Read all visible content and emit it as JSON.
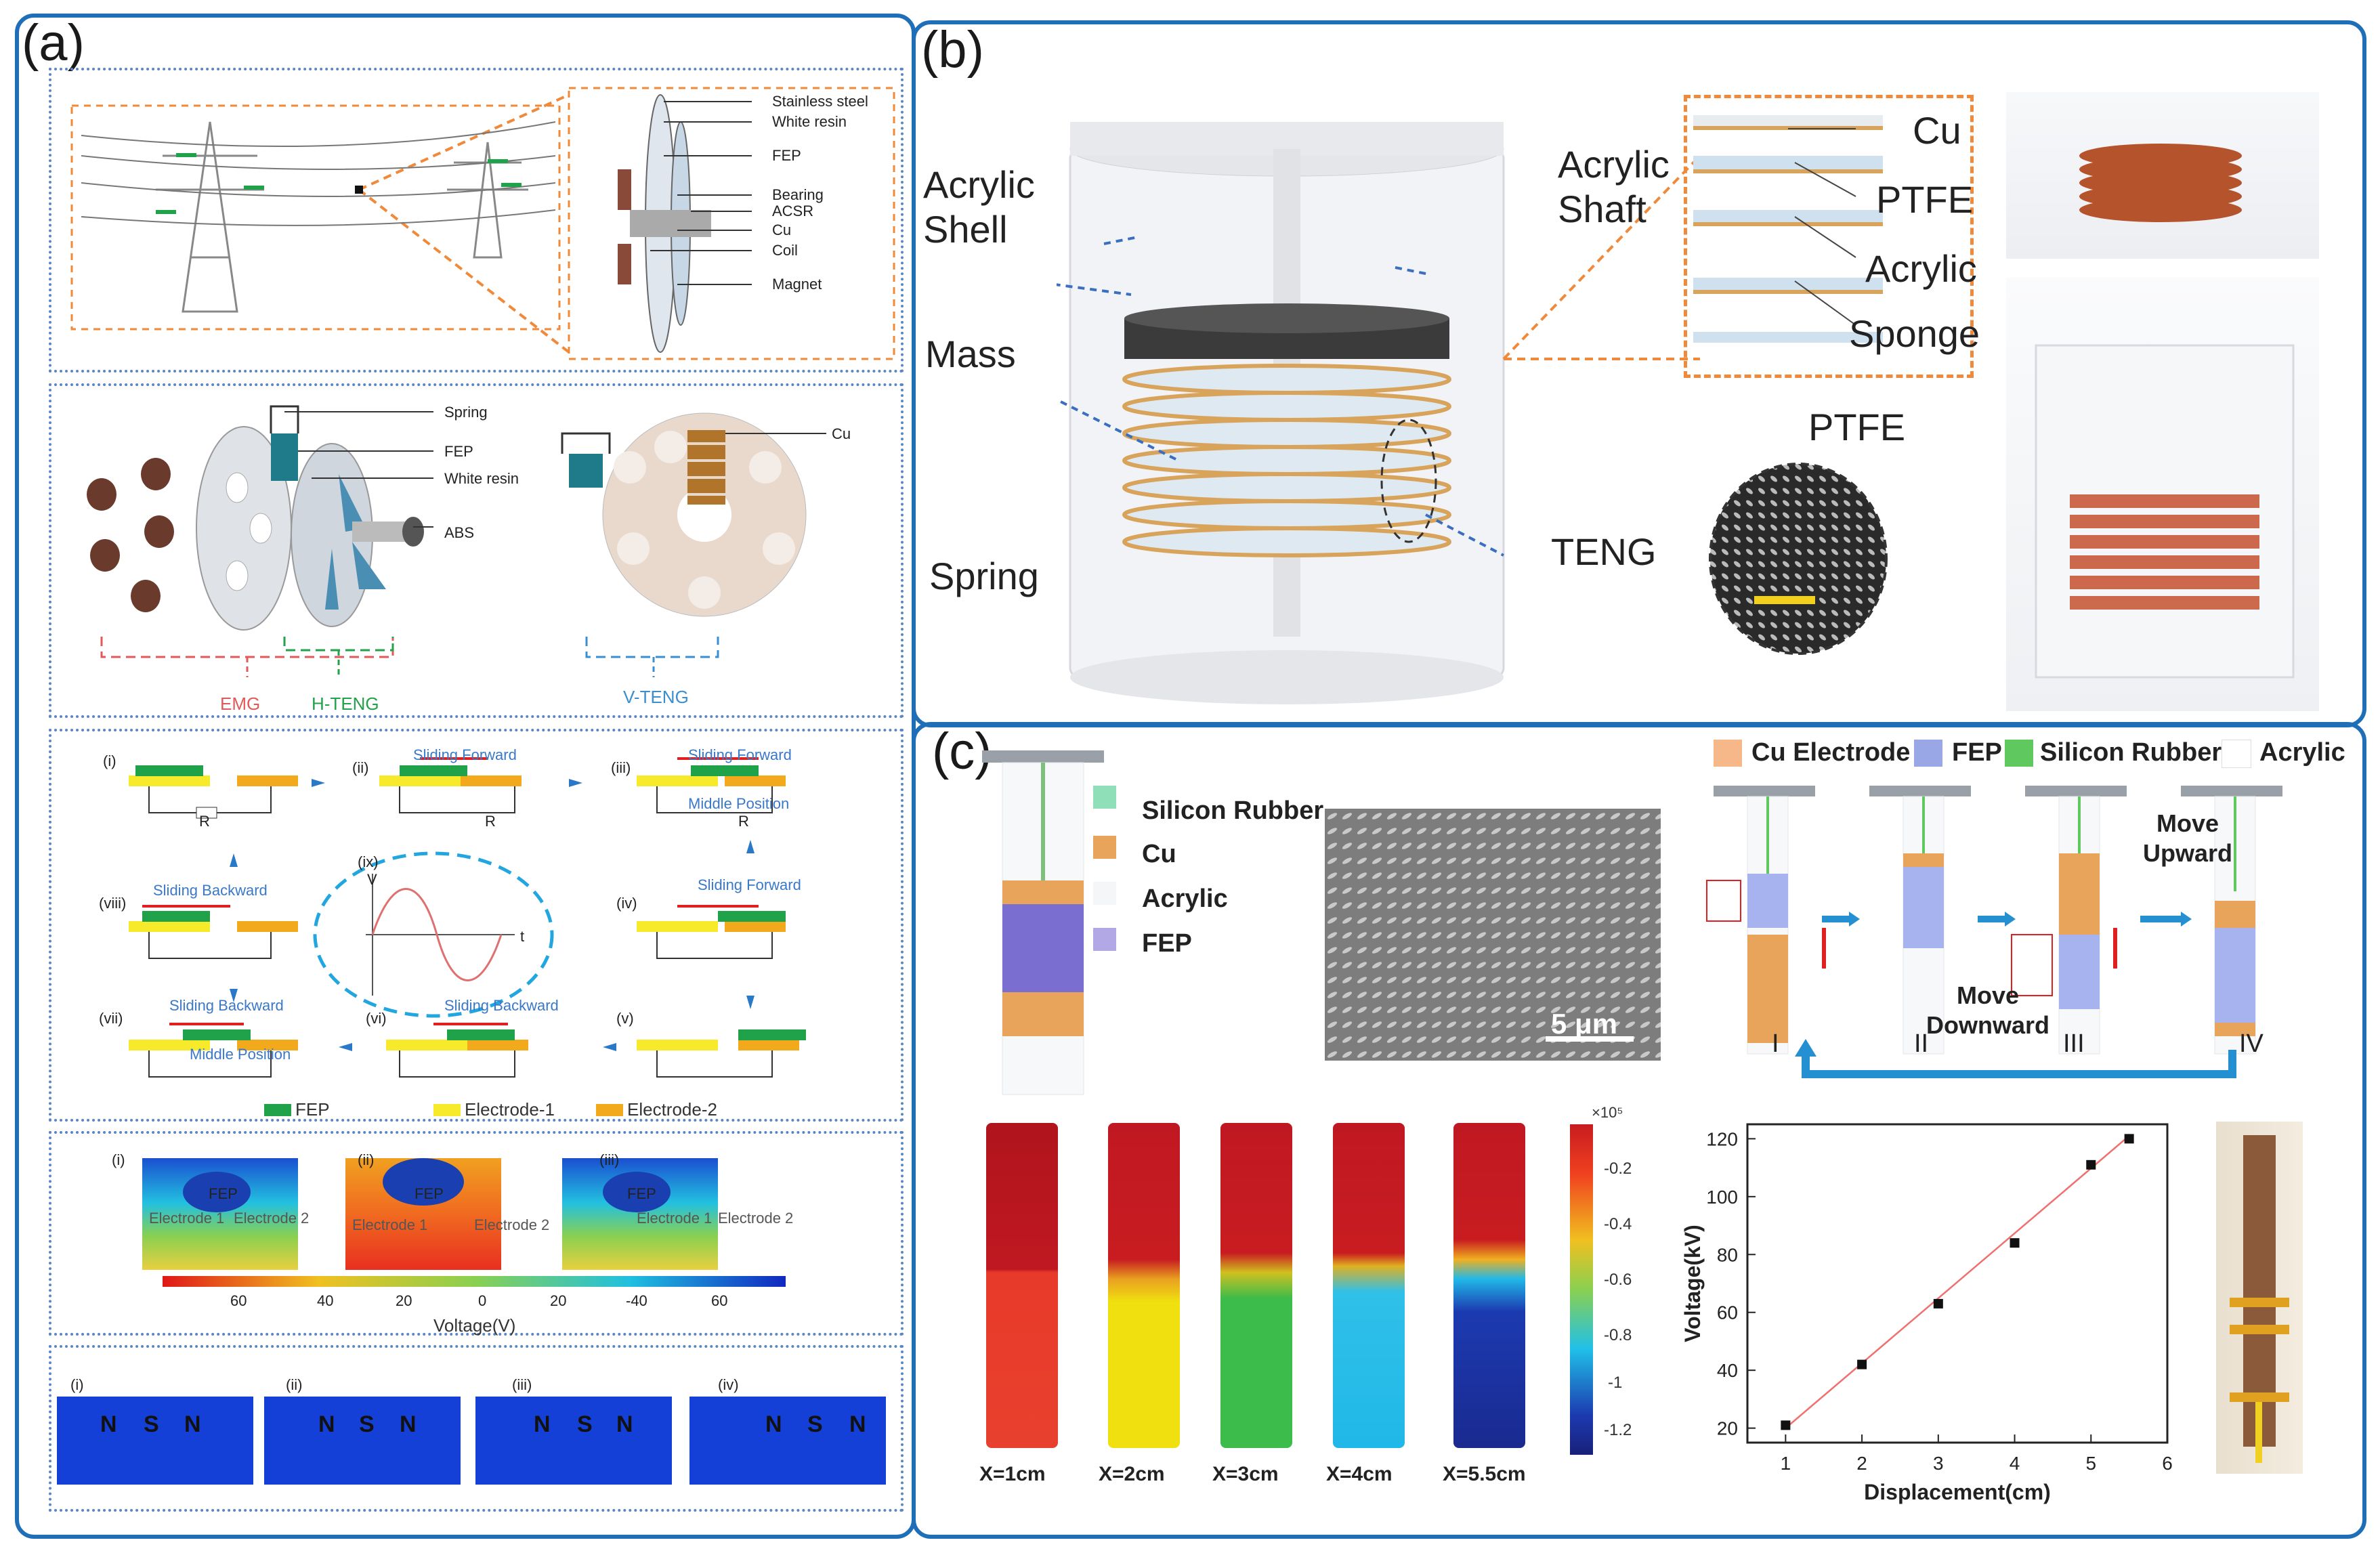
{
  "panels": {
    "a": "(a)",
    "b": "(b)",
    "c": "(c)"
  },
  "a1": {
    "labels": [
      "Stainless steel",
      "White resin",
      "FEP",
      "Bearing",
      "ACSR",
      "Cu",
      "Coil",
      "Magnet"
    ]
  },
  "a2": {
    "labels": {
      "spring": "Spring",
      "fep": "FEP",
      "white_resin": "White resin",
      "abs": "ABS",
      "cu": "Cu"
    },
    "groups": {
      "emg": "EMG",
      "hteng": "H-TENG",
      "vteng": "V-TENG"
    }
  },
  "a3": {
    "steps": [
      "(i)",
      "(ii)",
      "(iii)",
      "(iv)",
      "(v)",
      "(vi)",
      "(vii)",
      "(viii)",
      "(ix)"
    ],
    "captions": {
      "ii": "Sliding Forward",
      "iii_top": "Sliding Forward",
      "iii_bot": "Middle Position",
      "iv": "Sliding Forward",
      "vi": "Sliding Backward",
      "vii_top": "Sliding Backward",
      "vii_bot": "Middle Position",
      "viii": "Sliding Backward"
    },
    "resistor": "R",
    "legend": {
      "fep": "FEP",
      "e1": "Electrode-1",
      "e2": "Electrode-2"
    },
    "axis": {
      "y": "V",
      "x": "t"
    }
  },
  "a4": {
    "cases": [
      "(i)",
      "(ii)",
      "(iii)"
    ],
    "fep": "FEP",
    "e1": "Electrode 1",
    "e2": "Electrode 2",
    "ticks": [
      "60",
      "40",
      "20",
      "0",
      "20",
      "-40",
      "60"
    ],
    "title": "Voltage(V)"
  },
  "a5": {
    "cases": [
      "(i)",
      "(ii)",
      "(iii)",
      "(iv)"
    ],
    "poles": [
      "N",
      "S",
      "N"
    ]
  },
  "b": {
    "labels": {
      "shell": "Acrylic\nShell",
      "shaft": "Acrylic\nShaft",
      "mass": "Mass",
      "spring": "Spring",
      "teng": "TENG",
      "ptfe_img": "PTFE"
    },
    "layers": [
      "Cu",
      "PTFE",
      "Acrylic",
      "Sponge"
    ]
  },
  "c": {
    "legend1": [
      "Silicon Rubber",
      "Cu",
      "Acrylic",
      "FEP"
    ],
    "scale": "5 μm",
    "legend2": [
      "Cu Electrode",
      "FEP",
      "Silicon Rubber",
      "Acrylic"
    ],
    "stages": [
      "I",
      "II",
      "III",
      "IV"
    ],
    "move_upward": "Move\nUpward",
    "move_downward": "Move\nDownward",
    "sims": [
      "X=1cm",
      "X=2cm",
      "X=3cm",
      "X=4cm",
      "X=5.5cm"
    ],
    "colorbar": {
      "exp": "×10⁵",
      "ticks": [
        "-0.2",
        "-0.4",
        "-0.6",
        "-0.8",
        "-1",
        "-1.2"
      ]
    }
  },
  "colors": {
    "frame": "#1f6fb8",
    "fep_green": "#1fa24a",
    "electrode1": "#f7ea2a",
    "electrode2": "#f2a91b",
    "cu": "#e7a55a",
    "fepblue": "#8f8fd6",
    "arrow": "#2590d1",
    "red": "#e02020"
  },
  "chart_data": {
    "type": "scatter",
    "xlabel": "Displacement(cm)",
    "ylabel": "Voltage(kV)",
    "xlim": [
      0.5,
      6
    ],
    "ylim": [
      15,
      125
    ],
    "xticks": [
      1,
      2,
      3,
      4,
      5,
      6
    ],
    "yticks": [
      20,
      40,
      60,
      80,
      100,
      120
    ],
    "x": [
      1,
      2,
      3,
      4,
      5,
      5.5
    ],
    "y": [
      21,
      42,
      63,
      84,
      111,
      120
    ],
    "fit": {
      "x": [
        1,
        5.5
      ],
      "y": [
        20,
        121
      ]
    }
  }
}
